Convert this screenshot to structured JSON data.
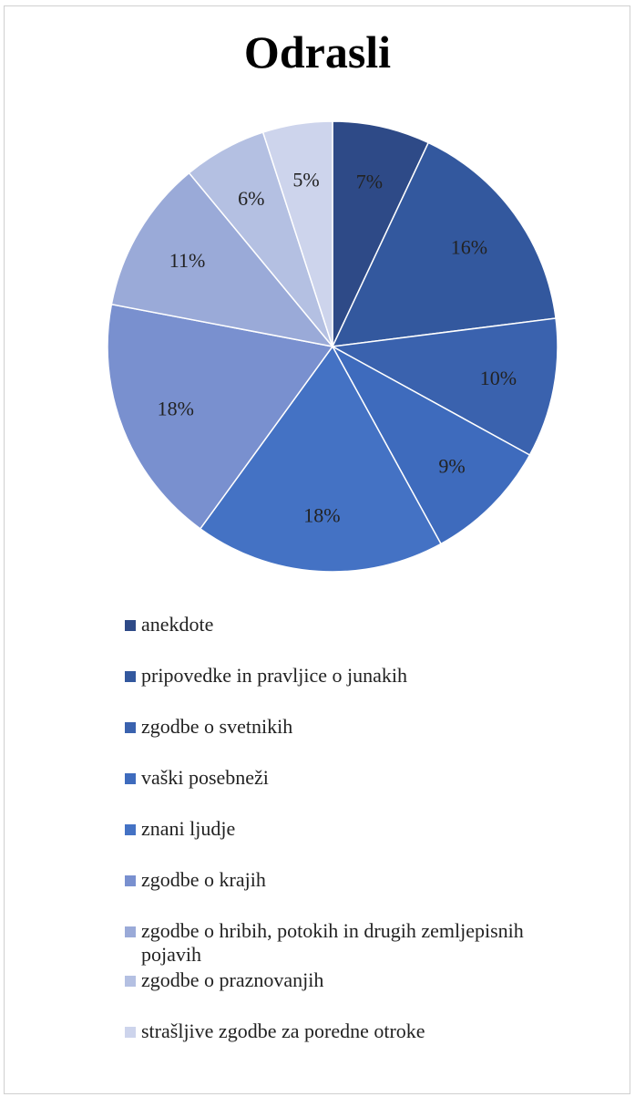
{
  "chart_data": {
    "type": "pie",
    "title": "Odrasli",
    "categories": [
      "anekdote",
      "pripovedke in pravljice o junakih",
      "zgodbe o svetnikih",
      "vaški posebneži",
      "znani ljudje",
      "zgodbe o krajih",
      "zgodbe o hribih, potokih in drugih zemljepisnih pojavih",
      "zgodbe o praznovanjih",
      "strašljive zgodbe za poredne otroke"
    ],
    "values": [
      7,
      16,
      10,
      9,
      18,
      18,
      11,
      6,
      5
    ],
    "labels": [
      "7%",
      "16%",
      "10%",
      "9%",
      "18%",
      "18%",
      "11%",
      "6%",
      "5%"
    ],
    "colors": [
      "#2e4a87",
      "#33589e",
      "#3a62ae",
      "#3e6bbd",
      "#4472c4",
      "#7990cf",
      "#9aaad8",
      "#b4c0e2",
      "#cdd4ec"
    ],
    "legend_position": "bottom"
  }
}
